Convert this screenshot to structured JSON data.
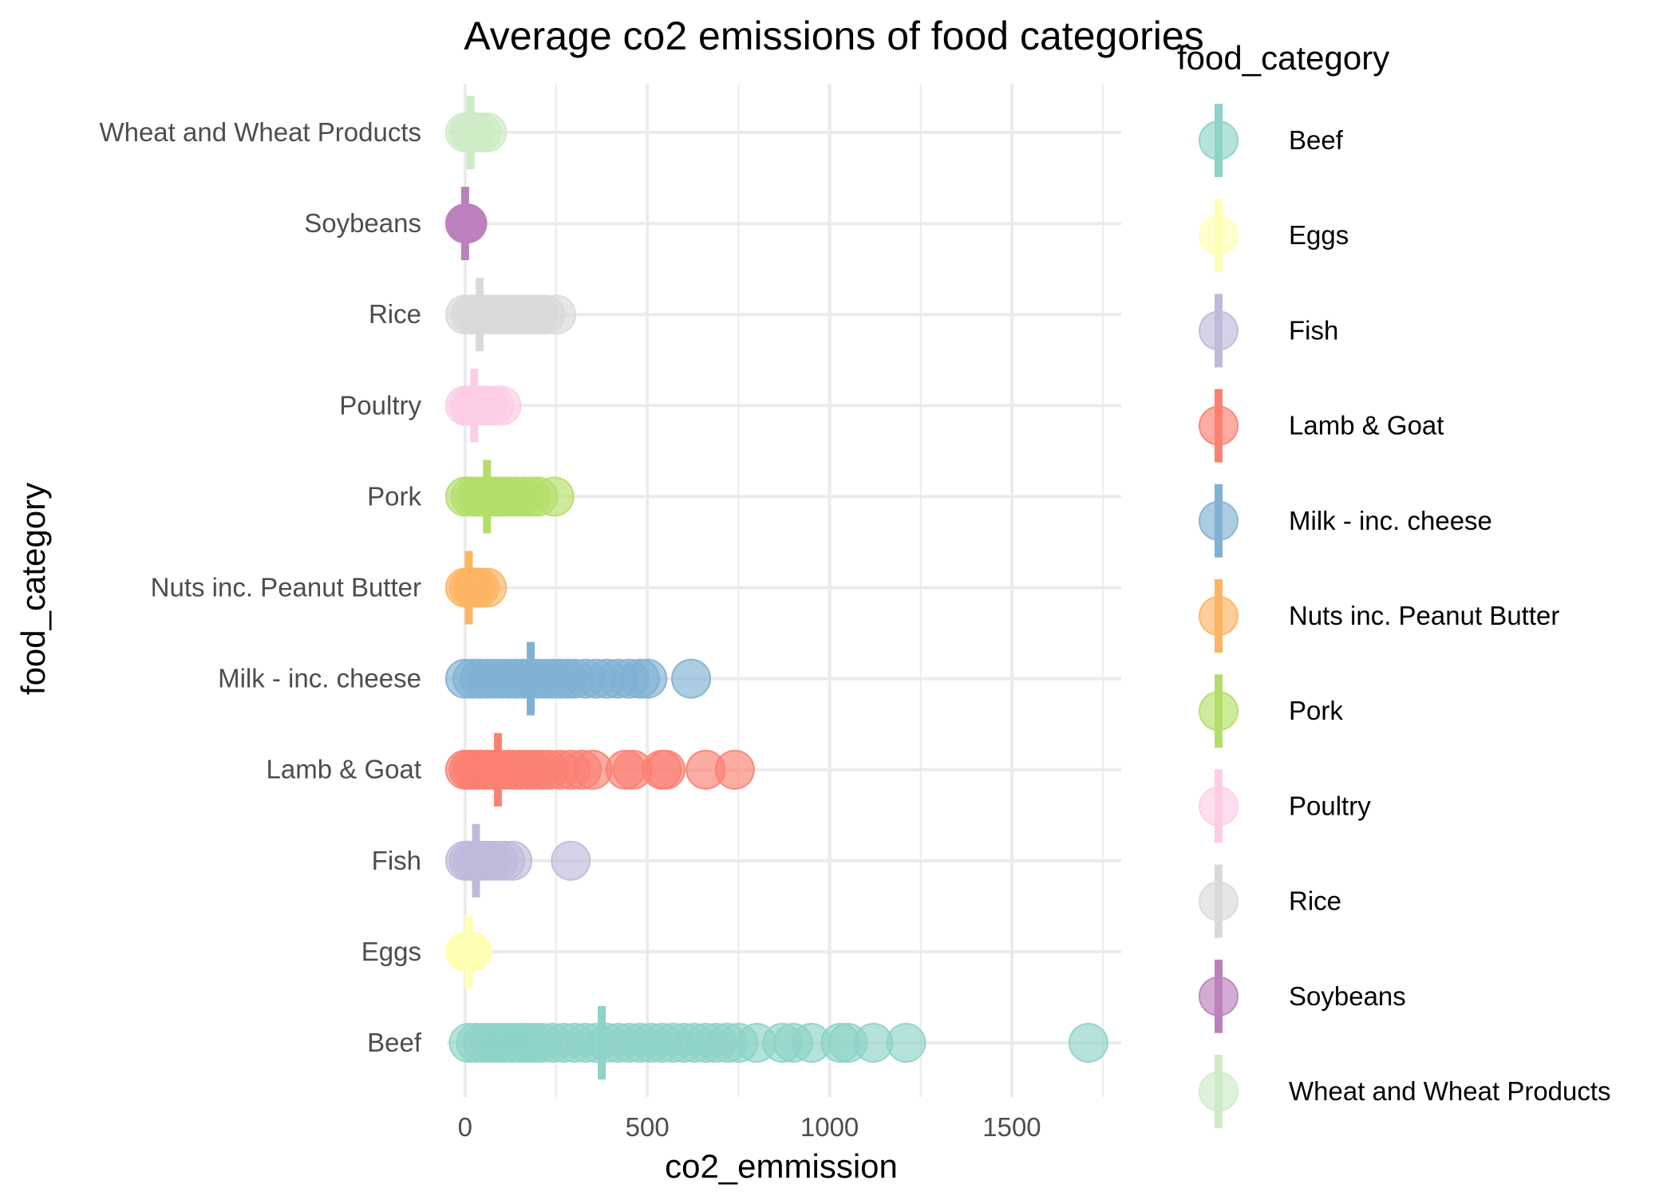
{
  "chart_data": {
    "type": "scatter",
    "title": "Average co2 emissions of food categories",
    "xlabel": "co2_emmission",
    "ylabel": "food_category",
    "xlim": [
      -50,
      1800
    ],
    "x_ticks": [
      0,
      500,
      1000,
      1500
    ],
    "grid": true,
    "legend": {
      "title": "food_category",
      "position": "right",
      "entries": [
        "Beef",
        "Eggs",
        "Fish",
        "Lamb & Goat",
        "Milk - inc. cheese",
        "Nuts inc. Peanut Butter",
        "Pork",
        "Poultry",
        "Rice",
        "Soybeans",
        "Wheat and Wheat Products"
      ]
    },
    "categories": [
      "Beef",
      "Eggs",
      "Fish",
      "Lamb & Goat",
      "Milk - inc. cheese",
      "Nuts inc. Peanut Butter",
      "Pork",
      "Poultry",
      "Rice",
      "Soybeans",
      "Wheat and Wheat Products"
    ],
    "series": [
      {
        "name": "Beef",
        "color": "#8DD3C7",
        "mean": 375,
        "points": [
          10,
          30,
          50,
          70,
          90,
          110,
          130,
          150,
          170,
          190,
          210,
          240,
          270,
          300,
          330,
          360,
          390,
          420,
          450,
          480,
          510,
          540,
          570,
          600,
          630,
          660,
          690,
          720,
          750,
          800,
          870,
          900,
          950,
          1030,
          1050,
          1120,
          1210,
          1710
        ]
      },
      {
        "name": "Eggs",
        "color": "#FFFFB3",
        "mean": 10,
        "points": [
          0,
          5,
          10,
          15,
          20
        ]
      },
      {
        "name": "Fish",
        "color": "#BEBADA",
        "mean": 30,
        "points": [
          0,
          10,
          20,
          30,
          40,
          55,
          70,
          90,
          110,
          130,
          290
        ]
      },
      {
        "name": "Lamb & Goat",
        "color": "#FB8072",
        "mean": 90,
        "points": [
          0,
          10,
          20,
          30,
          45,
          60,
          75,
          90,
          110,
          130,
          150,
          170,
          190,
          210,
          230,
          260,
          290,
          320,
          350,
          440,
          460,
          540,
          550,
          660,
          740
        ]
      },
      {
        "name": "Milk - inc. cheese",
        "color": "#80B1D3",
        "mean": 180,
        "points": [
          0,
          20,
          40,
          60,
          80,
          100,
          120,
          140,
          160,
          180,
          200,
          220,
          240,
          260,
          280,
          300,
          330,
          360,
          390,
          420,
          450,
          480,
          500,
          620
        ]
      },
      {
        "name": "Nuts inc. Peanut Butter",
        "color": "#FDB462",
        "mean": 10,
        "points": [
          0,
          10,
          20,
          30,
          40,
          60
        ]
      },
      {
        "name": "Pork",
        "color": "#B3DE69",
        "mean": 60,
        "points": [
          0,
          15,
          30,
          45,
          60,
          75,
          90,
          105,
          120,
          140,
          160,
          180,
          200,
          245
        ]
      },
      {
        "name": "Poultry",
        "color": "#FCCDE5",
        "mean": 25,
        "points": [
          0,
          10,
          20,
          30,
          45,
          60,
          80,
          100
        ]
      },
      {
        "name": "Rice",
        "color": "#D9D9D9",
        "mean": 40,
        "points": [
          0,
          15,
          30,
          45,
          60,
          80,
          100,
          120,
          140,
          160,
          180,
          200,
          220,
          250
        ]
      },
      {
        "name": "Soybeans",
        "color": "#BC80BD",
        "mean": 0,
        "points": [
          0,
          2,
          4,
          6
        ]
      },
      {
        "name": "Wheat and Wheat Products",
        "color": "#CCEBC5",
        "mean": 15,
        "points": [
          0,
          10,
          20,
          30,
          45,
          60
        ]
      }
    ]
  }
}
